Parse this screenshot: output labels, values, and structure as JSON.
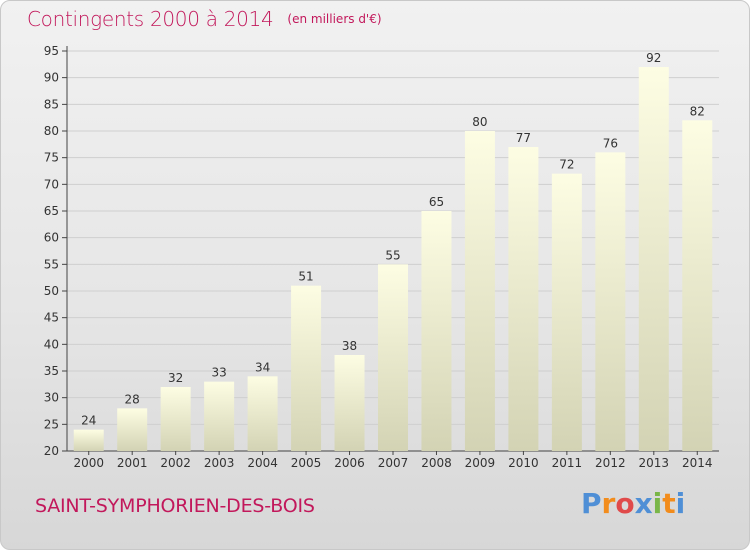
{
  "title": "Contingents 2000 à 2014",
  "subtitle": "(en milliers d'€)",
  "commune": "SAINT-SYMPHORIEN-DES-BOIS",
  "logo": {
    "letters": [
      "P",
      "r",
      "o",
      "x",
      "i",
      "t",
      "i"
    ],
    "colors": [
      "#4f8fd6",
      "#f28c1c",
      "#e04a4a",
      "#4f8fd6",
      "#7ab648",
      "#f28c1c",
      "#4f8fd6"
    ]
  },
  "chart_data": {
    "type": "bar",
    "categories": [
      "2000",
      "2001",
      "2002",
      "2003",
      "2004",
      "2005",
      "2006",
      "2007",
      "2008",
      "2009",
      "2010",
      "2011",
      "2012",
      "2013",
      "2014"
    ],
    "values": [
      24,
      28,
      32,
      33,
      34,
      51,
      38,
      55,
      65,
      80,
      77,
      72,
      76,
      92,
      82
    ],
    "ylim": [
      20,
      95
    ],
    "yticks": [
      20,
      25,
      30,
      35,
      40,
      45,
      50,
      55,
      60,
      65,
      70,
      75,
      80,
      85,
      90,
      95
    ],
    "grid": true,
    "bar_color_top": "#fdfde3",
    "bar_color_bottom": "#d3d3b4",
    "grid_color": "#cfcfcf"
  }
}
